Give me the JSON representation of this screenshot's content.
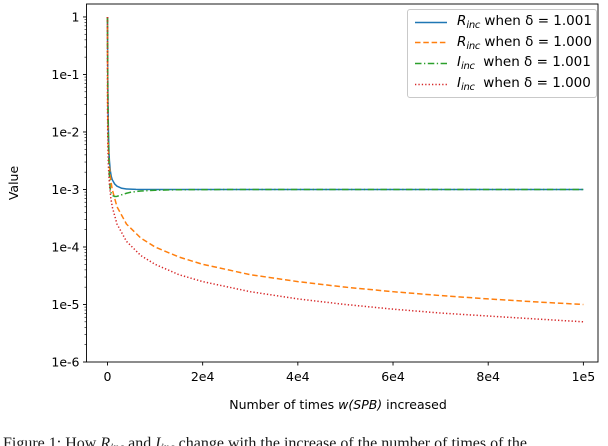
{
  "chart_data": {
    "type": "line",
    "title": "",
    "xlabel_pre": "Number of times ",
    "xlabel_math": "w(SPB)",
    "xlabel_post": " increased",
    "ylabel": "Value",
    "xlim": [
      -4409,
      103072
    ],
    "ylim": [
      1e-06,
      1.68
    ],
    "y_scale": "log",
    "grid": false,
    "legend_position": "upper right",
    "x_ticks": [
      {
        "v": 0,
        "label": "0"
      },
      {
        "v": 20000,
        "label": "2e4"
      },
      {
        "v": 40000,
        "label": "4e4"
      },
      {
        "v": 60000,
        "label": "6e4"
      },
      {
        "v": 80000,
        "label": "8e4"
      },
      {
        "v": 100000,
        "label": "1e5"
      }
    ],
    "y_ticks": [
      {
        "v": 1,
        "label": "1"
      },
      {
        "v": 0.1,
        "label": "1e-1"
      },
      {
        "v": 0.01,
        "label": "1e-2"
      },
      {
        "v": 0.001,
        "label": "1e-3"
      },
      {
        "v": 0.0001,
        "label": "1e-4"
      },
      {
        "v": 1e-05,
        "label": "1e-5"
      },
      {
        "v": 1e-06,
        "label": "1e-6"
      }
    ],
    "series": [
      {
        "id": "R_inc-delta-1.001",
        "legend": {
          "sym": "R",
          "sub": "inc",
          "rest": " when δ = 1.001"
        },
        "color": "#1f77b4",
        "linestyle": "solid",
        "dash": "",
        "points": [
          [
            0,
            1
          ],
          [
            30,
            0.25
          ],
          [
            60,
            0.09
          ],
          [
            100,
            0.04
          ],
          [
            150,
            0.018
          ],
          [
            200,
            0.01
          ],
          [
            300,
            0.0048
          ],
          [
            400,
            0.0032
          ],
          [
            600,
            0.0021
          ],
          [
            800,
            0.00168
          ],
          [
            1000,
            0.00148
          ],
          [
            1500,
            0.00125
          ],
          [
            2000,
            0.00114
          ],
          [
            3000,
            0.00105
          ],
          [
            4000,
            0.00102
          ],
          [
            6000,
            0.001005
          ],
          [
            10000,
            0.001
          ],
          [
            30000,
            0.001
          ],
          [
            60000,
            0.001
          ],
          [
            100000,
            0.001
          ]
        ]
      },
      {
        "id": "R_inc-delta-1.000",
        "legend": {
          "sym": "R",
          "sub": "inc",
          "rest": " when δ = 1.000"
        },
        "color": "#ff7f0e",
        "linestyle": "dashed",
        "dash": "5.5 2.8",
        "points": [
          [
            0,
            1
          ],
          [
            20,
            0.048
          ],
          [
            50,
            0.0196
          ],
          [
            100,
            0.0099
          ],
          [
            200,
            0.005
          ],
          [
            400,
            0.0025
          ],
          [
            700,
            0.00143
          ],
          [
            1000,
            0.001
          ],
          [
            2000,
            0.0005
          ],
          [
            4000,
            0.00025
          ],
          [
            7000,
            0.000143
          ],
          [
            10000,
            0.0001
          ],
          [
            15000,
            6.7e-05
          ],
          [
            20000,
            5e-05
          ],
          [
            30000,
            3.3e-05
          ],
          [
            40000,
            2.5e-05
          ],
          [
            50000,
            2e-05
          ],
          [
            60000,
            1.67e-05
          ],
          [
            70000,
            1.43e-05
          ],
          [
            80000,
            1.25e-05
          ],
          [
            90000,
            1.11e-05
          ],
          [
            100000,
            1e-05
          ]
        ]
      },
      {
        "id": "I_inc-delta-1.001",
        "legend": {
          "sym": "I",
          "sub": "inc",
          "rest": "  when δ = 1.001"
        },
        "color": "#2ca02c",
        "linestyle": "dashdot",
        "dash": "6.5 2.5 1.3 2.5",
        "points": [
          [
            0,
            1
          ],
          [
            30,
            0.22
          ],
          [
            60,
            0.075
          ],
          [
            100,
            0.03
          ],
          [
            150,
            0.013
          ],
          [
            200,
            0.007
          ],
          [
            300,
            0.003
          ],
          [
            400,
            0.0018
          ],
          [
            500,
            0.00125
          ],
          [
            600,
            0.00098
          ],
          [
            800,
            0.00085
          ],
          [
            1000,
            0.00079
          ],
          [
            1500,
            0.000755
          ],
          [
            2000,
            0.00076
          ],
          [
            3000,
            0.00081
          ],
          [
            4000,
            0.00086
          ],
          [
            5000,
            0.0009
          ],
          [
            7000,
            0.00094
          ],
          [
            10000,
            0.00097
          ],
          [
            15000,
            0.00099
          ],
          [
            20000,
            0.000995
          ],
          [
            30000,
            0.001
          ],
          [
            60000,
            0.001
          ],
          [
            100000,
            0.001
          ]
        ]
      },
      {
        "id": "I_inc-delta-1.000",
        "legend": {
          "sym": "I",
          "sub": "inc",
          "rest": "  when δ = 1.000"
        },
        "color": "#d62728",
        "linestyle": "dotted",
        "dash": "1.3 2.1",
        "points": [
          [
            0,
            1
          ],
          [
            20,
            0.024
          ],
          [
            50,
            0.0098
          ],
          [
            100,
            0.005
          ],
          [
            200,
            0.0025
          ],
          [
            400,
            0.00125
          ],
          [
            700,
            0.00071
          ],
          [
            1000,
            0.0005
          ],
          [
            2000,
            0.00025
          ],
          [
            4000,
            0.000125
          ],
          [
            7000,
            7.1e-05
          ],
          [
            10000,
            5e-05
          ],
          [
            15000,
            3.3e-05
          ],
          [
            20000,
            2.5e-05
          ],
          [
            30000,
            1.67e-05
          ],
          [
            40000,
            1.25e-05
          ],
          [
            50000,
            1e-05
          ],
          [
            60000,
            8.3e-06
          ],
          [
            70000,
            7.1e-06
          ],
          [
            80000,
            6.3e-06
          ],
          [
            90000,
            5.6e-06
          ],
          [
            100000,
            5e-06
          ]
        ]
      }
    ]
  },
  "caption": {
    "pre": "Figure 1: How ",
    "sym1": "R",
    "sub1": "inc",
    "mid": " and ",
    "sym2": "I",
    "sub2": "inc",
    "post": " change with the increase of the number of times of the"
  }
}
